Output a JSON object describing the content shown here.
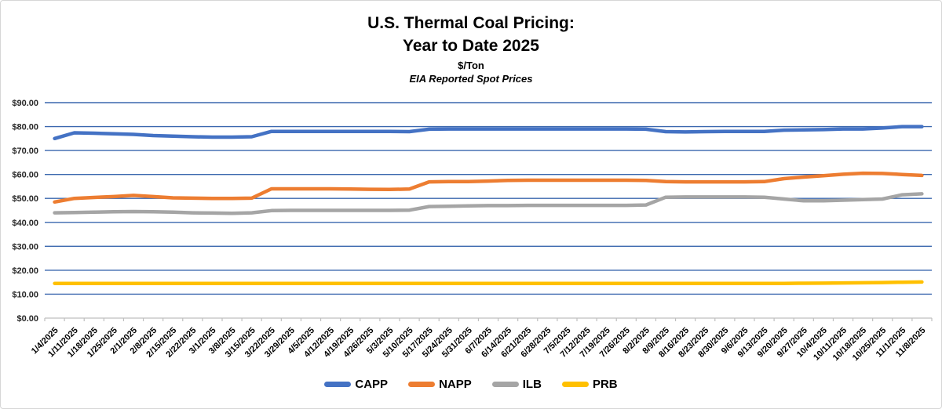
{
  "colors": {
    "capp": "#4472C4",
    "napp": "#ED7D31",
    "ilb": "#A5A5A5",
    "prb": "#FFC000",
    "gridline": "#3A67AE",
    "axis": "#BFBFBF",
    "label": "#262626"
  },
  "chart_data": {
    "type": "line",
    "title_line1": "U.S. Thermal Coal Pricing:",
    "title_line2": "Year to Date 2025",
    "units_label": "$/Ton",
    "source_label": "EIA Reported Spot Prices",
    "ylabel": "$/Ton",
    "ylim": [
      0,
      90
    ],
    "ytick_step": 10,
    "y_tick_labels": [
      "$0.00",
      "$10.00",
      "$20.00",
      "$30.00",
      "$40.00",
      "$50.00",
      "$60.00",
      "$70.00",
      "$80.00",
      "$90.00"
    ],
    "grid": true,
    "legend_position": "bottom",
    "categories": [
      "1/4/2025",
      "1/11/2025",
      "1/18/2025",
      "1/25/2025",
      "2/1/2025",
      "2/8/2025",
      "2/15/2025",
      "2/22/2025",
      "3/1/2025",
      "3/8/2025",
      "3/15/2025",
      "3/22/2025",
      "3/29/2025",
      "4/5/2025",
      "4/12/2025",
      "4/19/2025",
      "4/26/2025",
      "5/3/2025",
      "5/10/2025",
      "5/17/2025",
      "5/24/2025",
      "5/31/2025",
      "6/7/2025",
      "6/14/2025",
      "6/21/2025",
      "6/28/2025",
      "7/5/2025",
      "7/12/2025",
      "7/19/2025",
      "7/26/2025",
      "8/2/2025",
      "8/9/2025",
      "8/16/2025",
      "8/23/2025",
      "8/30/2025",
      "9/6/2025",
      "9/13/2025",
      "9/20/2025",
      "9/27/2025",
      "10/4/2025",
      "10/11/2025",
      "10/18/2025",
      "10/25/2025",
      "11/1/2025",
      "11/8/2025"
    ],
    "series": [
      {
        "name": "CAPP",
        "color_key": "capp",
        "values": [
          75.0,
          77.4,
          77.25,
          77.0,
          76.75,
          76.25,
          76.0,
          75.75,
          75.6,
          75.6,
          75.75,
          78.0,
          78.0,
          78.0,
          78.0,
          78.0,
          78.0,
          78.0,
          77.9,
          78.9,
          79.0,
          79.0,
          79.0,
          79.0,
          79.0,
          79.0,
          79.0,
          79.0,
          79.0,
          79.0,
          78.9,
          77.9,
          77.75,
          77.9,
          78.0,
          78.0,
          78.0,
          78.5,
          78.6,
          78.75,
          79.0,
          79.0,
          79.4,
          80.0,
          80.0
        ]
      },
      {
        "name": "NAPP",
        "color_key": "napp",
        "values": [
          48.5,
          50.0,
          50.4,
          50.75,
          51.25,
          50.75,
          50.25,
          50.1,
          50.0,
          50.0,
          50.1,
          54.0,
          54.0,
          54.0,
          54.0,
          53.9,
          53.8,
          53.75,
          53.9,
          56.9,
          57.0,
          57.0,
          57.25,
          57.5,
          57.6,
          57.6,
          57.6,
          57.6,
          57.6,
          57.6,
          57.5,
          57.0,
          56.9,
          56.9,
          56.9,
          56.9,
          57.0,
          58.25,
          58.9,
          59.5,
          60.1,
          60.5,
          60.4,
          60.0,
          59.6
        ]
      },
      {
        "name": "ILB",
        "color_key": "ilb",
        "values": [
          44.0,
          44.1,
          44.25,
          44.4,
          44.5,
          44.4,
          44.25,
          44.0,
          43.9,
          43.8,
          44.0,
          44.9,
          45.0,
          45.0,
          45.0,
          45.0,
          45.0,
          45.0,
          45.1,
          46.6,
          46.75,
          46.9,
          47.0,
          47.0,
          47.1,
          47.1,
          47.1,
          47.1,
          47.1,
          47.1,
          47.25,
          50.5,
          50.6,
          50.6,
          50.6,
          50.6,
          50.5,
          49.75,
          49.0,
          49.0,
          49.25,
          49.5,
          49.75,
          51.5,
          51.9
        ]
      },
      {
        "name": "PRB",
        "color_key": "prb",
        "values": [
          14.5,
          14.5,
          14.5,
          14.5,
          14.5,
          14.5,
          14.5,
          14.5,
          14.5,
          14.5,
          14.5,
          14.5,
          14.5,
          14.5,
          14.5,
          14.5,
          14.5,
          14.5,
          14.5,
          14.5,
          14.5,
          14.5,
          14.5,
          14.5,
          14.5,
          14.5,
          14.5,
          14.5,
          14.5,
          14.5,
          14.5,
          14.5,
          14.5,
          14.5,
          14.5,
          14.5,
          14.5,
          14.5,
          14.55,
          14.6,
          14.7,
          14.75,
          14.85,
          15.0,
          15.1
        ]
      }
    ]
  }
}
